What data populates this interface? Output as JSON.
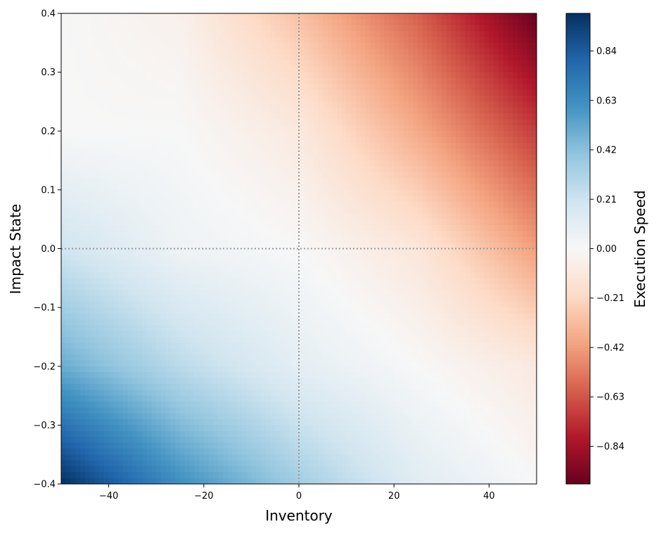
{
  "chart_data": {
    "type": "heatmap",
    "title": "",
    "xlabel": "Inventory",
    "ylabel": "Impact State",
    "xlim": [
      -50,
      50
    ],
    "ylim": [
      -0.4,
      0.4
    ],
    "x_ticks": [
      -40,
      -20,
      0,
      20,
      40
    ],
    "x_tick_labels": [
      "−40",
      "−20",
      "0",
      "20",
      "40"
    ],
    "y_ticks": [
      -0.4,
      -0.3,
      -0.2,
      -0.1,
      0.0,
      0.1,
      0.2,
      0.3,
      0.4
    ],
    "y_tick_labels": [
      "−0.4",
      "−0.3",
      "−0.2",
      "−0.1",
      "0.0",
      "0.1",
      "0.2",
      "0.3",
      "0.4"
    ],
    "reference_lines": {
      "x": 0,
      "y": 0,
      "style": "dotted",
      "color": "#999999"
    },
    "colormap": "RdBu",
    "colorbar": {
      "label": "Execution Speed",
      "range": [
        -1.0,
        1.0
      ],
      "ticks": [
        0.84,
        0.63,
        0.42,
        0.21,
        0.0,
        -0.21,
        -0.42,
        -0.63,
        -0.84
      ],
      "tick_labels": [
        "0.84",
        "0.63",
        "0.42",
        "0.21",
        "0.00",
        "−0.21",
        "−0.42",
        "−0.63",
        "−0.84"
      ]
    },
    "field": {
      "description_of_values": "Execution Speed sampled at grid points",
      "x": [
        -50,
        -25,
        0,
        25,
        50
      ],
      "y": [
        -0.4,
        -0.2,
        0.0,
        0.2,
        0.4
      ],
      "values": [
        [
          1.0,
          0.62,
          0.35,
          0.12,
          0.0
        ],
        [
          0.5,
          0.27,
          0.1,
          0.0,
          -0.1
        ],
        [
          0.2,
          0.05,
          0.0,
          -0.12,
          -0.42
        ],
        [
          0.0,
          0.0,
          -0.1,
          -0.38,
          -0.7
        ],
        [
          0.0,
          -0.05,
          -0.3,
          -0.6,
          -1.0
        ]
      ]
    },
    "grid": false
  }
}
